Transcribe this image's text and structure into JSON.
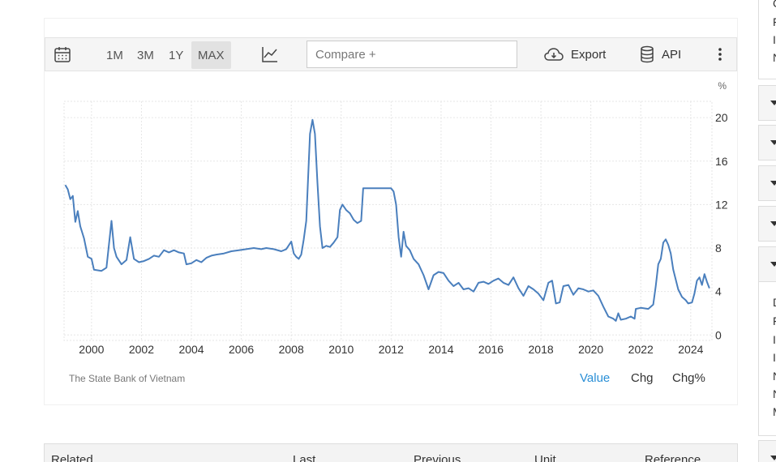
{
  "toolbar": {
    "ranges": [
      "1M",
      "3M",
      "1Y",
      "MAX"
    ],
    "active_range": "MAX",
    "compare_placeholder": "Compare +",
    "export_label": "Export",
    "api_label": "API"
  },
  "source": "The State Bank of Vietnam",
  "modes": [
    "Value",
    "Chg",
    "Chg%"
  ],
  "active_mode": "Value",
  "table_headers": [
    "Related",
    "Last",
    "Previous",
    "Unit",
    "Reference"
  ],
  "side_letters_top": [
    "C",
    "F",
    "I",
    "N"
  ],
  "side_letters_bottom": [
    "D",
    "F",
    "I",
    "I",
    "N",
    "N",
    "M"
  ],
  "colors": {
    "line": "#4a7fbd",
    "active": "#2a8fd6"
  },
  "chart_data": {
    "type": "line",
    "title": "",
    "xlabel": "",
    "ylabel": "%",
    "xlim": [
      1998.9,
      2024.85
    ],
    "ylim": [
      -0.5,
      21.5
    ],
    "x_ticks": [
      2000,
      2002,
      2004,
      2006,
      2008,
      2010,
      2012,
      2014,
      2016,
      2018,
      2020,
      2022,
      2024
    ],
    "y_ticks": [
      0,
      4,
      8,
      12,
      16,
      20
    ],
    "grid": true,
    "series": [
      {
        "name": "",
        "points": [
          [
            1998.95,
            13.8
          ],
          [
            1999.05,
            13.4
          ],
          [
            1999.15,
            12.5
          ],
          [
            1999.25,
            12.8
          ],
          [
            1999.35,
            10.4
          ],
          [
            1999.45,
            11.4
          ],
          [
            1999.55,
            10.0
          ],
          [
            1999.7,
            8.9
          ],
          [
            1999.85,
            7.2
          ],
          [
            2000.0,
            7.0
          ],
          [
            2000.1,
            6.0
          ],
          [
            2000.4,
            5.9
          ],
          [
            2000.6,
            6.2
          ],
          [
            2000.8,
            10.5
          ],
          [
            2000.9,
            8.0
          ],
          [
            2001.0,
            7.2
          ],
          [
            2001.2,
            6.5
          ],
          [
            2001.4,
            6.9
          ],
          [
            2001.55,
            9.0
          ],
          [
            2001.7,
            7.0
          ],
          [
            2001.9,
            6.7
          ],
          [
            2002.1,
            6.8
          ],
          [
            2002.3,
            7.0
          ],
          [
            2002.5,
            7.3
          ],
          [
            2002.7,
            7.2
          ],
          [
            2002.9,
            7.8
          ],
          [
            2003.1,
            7.6
          ],
          [
            2003.3,
            7.8
          ],
          [
            2003.5,
            7.6
          ],
          [
            2003.7,
            7.5
          ],
          [
            2003.8,
            6.5
          ],
          [
            2004.0,
            6.6
          ],
          [
            2004.2,
            6.9
          ],
          [
            2004.4,
            6.7
          ],
          [
            2004.6,
            7.1
          ],
          [
            2004.8,
            7.3
          ],
          [
            2005.0,
            7.4
          ],
          [
            2005.3,
            7.5
          ],
          [
            2005.6,
            7.7
          ],
          [
            2005.9,
            7.8
          ],
          [
            2006.2,
            7.9
          ],
          [
            2006.5,
            8.0
          ],
          [
            2006.8,
            7.9
          ],
          [
            2007.0,
            8.0
          ],
          [
            2007.3,
            7.9
          ],
          [
            2007.6,
            7.7
          ],
          [
            2007.8,
            7.9
          ],
          [
            2008.0,
            8.6
          ],
          [
            2008.1,
            7.5
          ],
          [
            2008.2,
            7.2
          ],
          [
            2008.3,
            7.0
          ],
          [
            2008.4,
            7.4
          ],
          [
            2008.5,
            8.8
          ],
          [
            2008.6,
            10.5
          ],
          [
            2008.75,
            18.5
          ],
          [
            2008.85,
            19.8
          ],
          [
            2008.95,
            18.5
          ],
          [
            2009.05,
            14.0
          ],
          [
            2009.15,
            10.0
          ],
          [
            2009.25,
            8.0
          ],
          [
            2009.4,
            8.2
          ],
          [
            2009.55,
            8.1
          ],
          [
            2009.7,
            8.5
          ],
          [
            2009.85,
            9.0
          ],
          [
            2009.95,
            11.5
          ],
          [
            2010.05,
            12.0
          ],
          [
            2010.2,
            11.5
          ],
          [
            2010.35,
            11.2
          ],
          [
            2010.5,
            10.6
          ],
          [
            2010.65,
            10.3
          ],
          [
            2010.8,
            10.5
          ],
          [
            2010.88,
            13.5
          ],
          [
            2011.2,
            13.5
          ],
          [
            2011.5,
            13.5
          ],
          [
            2011.8,
            13.5
          ],
          [
            2012.0,
            13.5
          ],
          [
            2012.1,
            13.2
          ],
          [
            2012.2,
            12.0
          ],
          [
            2012.3,
            9.0
          ],
          [
            2012.4,
            7.2
          ],
          [
            2012.5,
            9.5
          ],
          [
            2012.6,
            8.2
          ],
          [
            2012.75,
            7.8
          ],
          [
            2012.9,
            7.0
          ],
          [
            2013.1,
            6.5
          ],
          [
            2013.3,
            5.5
          ],
          [
            2013.5,
            4.2
          ],
          [
            2013.7,
            5.5
          ],
          [
            2013.9,
            5.8
          ],
          [
            2014.1,
            5.7
          ],
          [
            2014.3,
            5.0
          ],
          [
            2014.5,
            4.5
          ],
          [
            2014.7,
            4.8
          ],
          [
            2014.9,
            4.2
          ],
          [
            2015.1,
            4.3
          ],
          [
            2015.3,
            4.0
          ],
          [
            2015.5,
            4.8
          ],
          [
            2015.7,
            4.9
          ],
          [
            2015.9,
            4.7
          ],
          [
            2016.1,
            5.0
          ],
          [
            2016.3,
            5.2
          ],
          [
            2016.5,
            4.8
          ],
          [
            2016.7,
            4.6
          ],
          [
            2016.9,
            5.3
          ],
          [
            2017.1,
            4.3
          ],
          [
            2017.3,
            3.6
          ],
          [
            2017.5,
            4.5
          ],
          [
            2017.7,
            4.2
          ],
          [
            2017.9,
            3.8
          ],
          [
            2018.1,
            3.2
          ],
          [
            2018.3,
            4.8
          ],
          [
            2018.45,
            5.0
          ],
          [
            2018.6,
            2.9
          ],
          [
            2018.75,
            3.0
          ],
          [
            2018.9,
            4.5
          ],
          [
            2019.1,
            4.6
          ],
          [
            2019.3,
            3.7
          ],
          [
            2019.5,
            4.3
          ],
          [
            2019.7,
            4.2
          ],
          [
            2019.9,
            4.0
          ],
          [
            2020.1,
            4.1
          ],
          [
            2020.3,
            3.6
          ],
          [
            2020.5,
            2.6
          ],
          [
            2020.7,
            1.7
          ],
          [
            2020.9,
            1.5
          ],
          [
            2021.0,
            1.3
          ],
          [
            2021.1,
            2.0
          ],
          [
            2021.2,
            1.4
          ],
          [
            2021.4,
            1.5
          ],
          [
            2021.6,
            1.7
          ],
          [
            2021.75,
            1.5
          ],
          [
            2021.8,
            2.4
          ],
          [
            2022.0,
            2.5
          ],
          [
            2022.3,
            2.4
          ],
          [
            2022.5,
            2.8
          ],
          [
            2022.6,
            4.5
          ],
          [
            2022.7,
            6.5
          ],
          [
            2022.8,
            7.0
          ],
          [
            2022.9,
            8.5
          ],
          [
            2023.0,
            8.8
          ],
          [
            2023.1,
            8.3
          ],
          [
            2023.2,
            7.5
          ],
          [
            2023.3,
            6.0
          ],
          [
            2023.5,
            4.2
          ],
          [
            2023.65,
            3.5
          ],
          [
            2023.8,
            3.2
          ],
          [
            2023.9,
            2.9
          ],
          [
            2024.05,
            3.0
          ],
          [
            2024.15,
            3.8
          ],
          [
            2024.25,
            5.0
          ],
          [
            2024.35,
            5.3
          ],
          [
            2024.45,
            4.6
          ],
          [
            2024.55,
            5.6
          ],
          [
            2024.65,
            4.9
          ],
          [
            2024.75,
            4.3
          ]
        ]
      }
    ]
  }
}
